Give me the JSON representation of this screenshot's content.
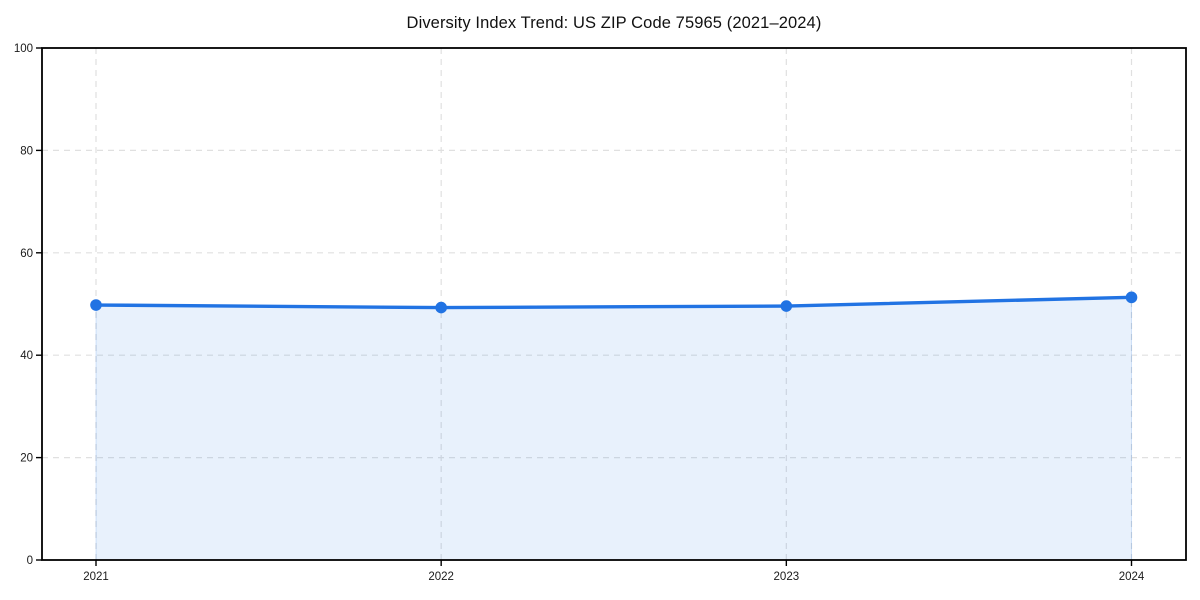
{
  "chart_data": {
    "type": "area",
    "title": "Diversity Index Trend: US ZIP Code 75965 (2021–2024)",
    "x_tick_labels": [
      "2021",
      "2022",
      "2023",
      "2024"
    ],
    "x": [
      2021,
      2022,
      2023,
      2024
    ],
    "values": [
      49.8,
      49.3,
      49.6,
      51.3
    ],
    "xlabel": "",
    "ylabel": "",
    "ylim": [
      0,
      100
    ],
    "yticks": [
      0,
      20,
      40,
      60,
      80,
      100
    ],
    "grid": "dashed, horizontal and vertical, light gray",
    "legend": "none",
    "marker": "circle",
    "colors": {
      "line": "#2173e3",
      "area_fill": "#e8effc",
      "grid": "#e0e0e0",
      "axis": "#000000",
      "tick_label": "#1a1a1a",
      "title": "#111111",
      "background": "#ffffff"
    }
  }
}
